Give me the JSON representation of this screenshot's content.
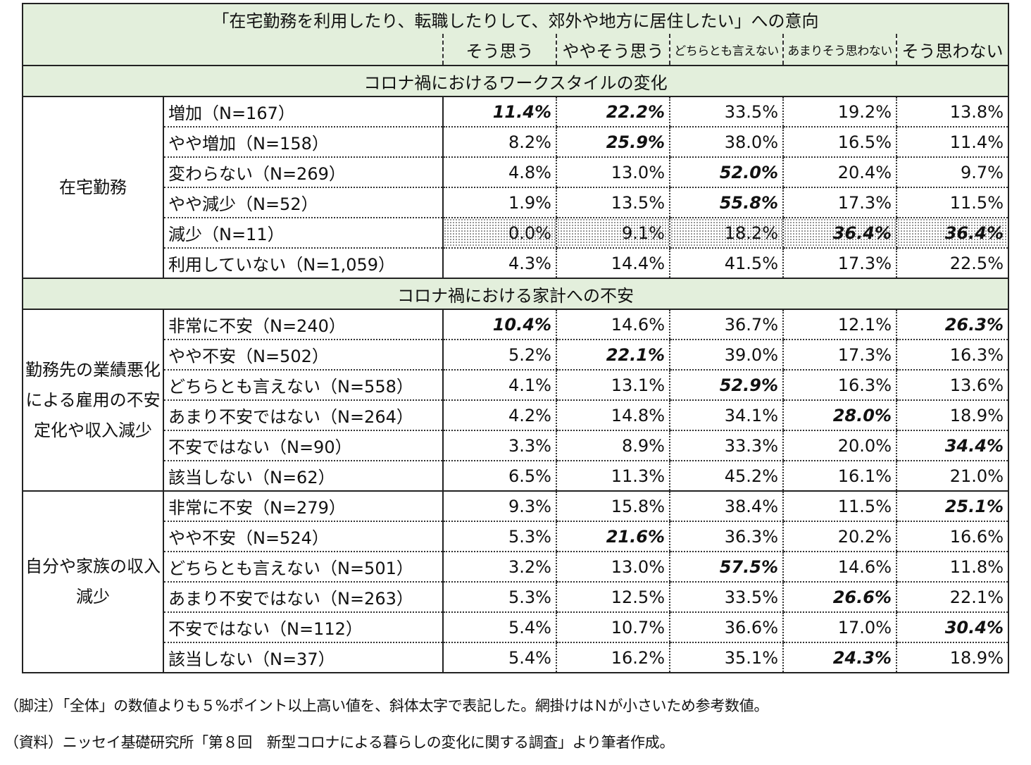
{
  "title": "「在宅勤務を利用したり、転職したりして、郊外や地方に居住したい」への意向",
  "columns": [
    "そう思う",
    "ややそう思う",
    "どちらとも言えない",
    "あまりそう思わない",
    "そう思わない"
  ],
  "sections": [
    {
      "heading": "コロナ禍におけるワークスタイルの変化",
      "groups": [
        {
          "label": "在宅勤務",
          "rows": [
            {
              "label": "増加（N=167）",
              "values": [
                "11.4%",
                "22.2%",
                "33.5%",
                "19.2%",
                "13.8%"
              ],
              "emphasis": [
                true,
                true,
                false,
                false,
                false
              ]
            },
            {
              "label": "やや増加（N=158）",
              "values": [
                "8.2%",
                "25.9%",
                "38.0%",
                "16.5%",
                "11.4%"
              ],
              "emphasis": [
                false,
                true,
                false,
                false,
                false
              ]
            },
            {
              "label": "変わらない（N=269）",
              "values": [
                "4.8%",
                "13.0%",
                "52.0%",
                "20.4%",
                "9.7%"
              ],
              "emphasis": [
                false,
                false,
                true,
                false,
                false
              ]
            },
            {
              "label": "やや減少（N=52）",
              "values": [
                "1.9%",
                "13.5%",
                "55.8%",
                "17.3%",
                "11.5%"
              ],
              "emphasis": [
                false,
                false,
                true,
                false,
                false
              ]
            },
            {
              "label": "減少（N=11）",
              "values": [
                "0.0%",
                "9.1%",
                "18.2%",
                "36.4%",
                "36.4%"
              ],
              "emphasis": [
                false,
                false,
                false,
                true,
                true
              ],
              "shaded": true
            },
            {
              "label": "利用していない（N=1,059）",
              "values": [
                "4.3%",
                "14.4%",
                "41.5%",
                "17.3%",
                "22.5%"
              ],
              "emphasis": [
                false,
                false,
                false,
                false,
                false
              ]
            }
          ]
        }
      ]
    },
    {
      "heading": "コロナ禍における家計への不安",
      "groups": [
        {
          "label": "勤務先の業績悪化による雇用の不安定化や収入減少",
          "rows": [
            {
              "label": "非常に不安（N=240）",
              "values": [
                "10.4%",
                "14.6%",
                "36.7%",
                "12.1%",
                "26.3%"
              ],
              "emphasis": [
                true,
                false,
                false,
                false,
                true
              ]
            },
            {
              "label": "やや不安（N=502）",
              "values": [
                "5.2%",
                "22.1%",
                "39.0%",
                "17.3%",
                "16.3%"
              ],
              "emphasis": [
                false,
                true,
                false,
                false,
                false
              ]
            },
            {
              "label": "どちらとも言えない（N=558）",
              "values": [
                "4.1%",
                "13.1%",
                "52.9%",
                "16.3%",
                "13.6%"
              ],
              "emphasis": [
                false,
                false,
                true,
                false,
                false
              ]
            },
            {
              "label": "あまり不安ではない（N=264）",
              "values": [
                "4.2%",
                "14.8%",
                "34.1%",
                "28.0%",
                "18.9%"
              ],
              "emphasis": [
                false,
                false,
                false,
                true,
                false
              ]
            },
            {
              "label": "不安ではない（N=90）",
              "values": [
                "3.3%",
                "8.9%",
                "33.3%",
                "20.0%",
                "34.4%"
              ],
              "emphasis": [
                false,
                false,
                false,
                false,
                true
              ]
            },
            {
              "label": "該当しない（N=62）",
              "values": [
                "6.5%",
                "11.3%",
                "45.2%",
                "16.1%",
                "21.0%"
              ],
              "emphasis": [
                false,
                false,
                false,
                false,
                false
              ]
            }
          ]
        },
        {
          "label": "自分や家族の収入減少",
          "rows": [
            {
              "label": "非常に不安（N=279）",
              "values": [
                "9.3%",
                "15.8%",
                "38.4%",
                "11.5%",
                "25.1%"
              ],
              "emphasis": [
                false,
                false,
                false,
                false,
                true
              ]
            },
            {
              "label": "やや不安（N=524）",
              "values": [
                "5.3%",
                "21.6%",
                "36.3%",
                "20.2%",
                "16.6%"
              ],
              "emphasis": [
                false,
                true,
                false,
                false,
                false
              ]
            },
            {
              "label": "どちらとも言えない（N=501）",
              "values": [
                "3.2%",
                "13.0%",
                "57.5%",
                "14.6%",
                "11.8%"
              ],
              "emphasis": [
                false,
                false,
                true,
                false,
                false
              ]
            },
            {
              "label": "あまり不安ではない（N=263）",
              "values": [
                "5.3%",
                "12.5%",
                "33.5%",
                "26.6%",
                "22.1%"
              ],
              "emphasis": [
                false,
                false,
                false,
                true,
                false
              ]
            },
            {
              "label": "不安ではない（N=112）",
              "values": [
                "5.4%",
                "10.7%",
                "36.6%",
                "17.0%",
                "30.4%"
              ],
              "emphasis": [
                false,
                false,
                false,
                false,
                true
              ]
            },
            {
              "label": "該当しない（N=37）",
              "values": [
                "5.4%",
                "16.2%",
                "35.1%",
                "24.3%",
                "18.9%"
              ],
              "emphasis": [
                false,
                false,
                false,
                true,
                false
              ]
            }
          ]
        }
      ]
    }
  ],
  "footnotes": {
    "note": "（脚注）「全体」の数値よりも５%ポイント以上高い値を、斜体太字で表記した。網掛けはＮが小さいため参考数値。",
    "source": "（資料）ニッセイ基礎研究所「第８回　新型コロナによる暮らしの変化に関する調査」より筆者作成。"
  }
}
